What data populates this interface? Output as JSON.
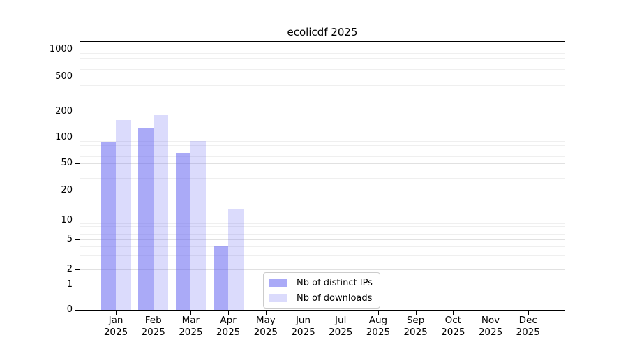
{
  "chart_data": {
    "type": "bar",
    "title": "ecolicdf 2025",
    "categories": [
      "Jan 2025",
      "Feb 2025",
      "Mar 2025",
      "Apr 2025",
      "May 2025",
      "Jun 2025",
      "Jul 2025",
      "Aug 2025",
      "Sep 2025",
      "Oct 2025",
      "Nov 2025",
      "Dec 2025"
    ],
    "x_months": [
      "Jan",
      "Feb",
      "Mar",
      "Apr",
      "May",
      "Jun",
      "Jul",
      "Aug",
      "Sep",
      "Oct",
      "Nov",
      "Dec"
    ],
    "x_year": "2025",
    "series": [
      {
        "name": "Nb of distinct IPs",
        "fill": "rgba(100,100,240,0.55)",
        "values": [
          87,
          130,
          66,
          4,
          null,
          null,
          null,
          null,
          null,
          null,
          null,
          null
        ]
      },
      {
        "name": "Nb of downloads",
        "fill": "rgba(100,100,240,0.23)",
        "values": [
          157,
          180,
          90,
          13,
          null,
          null,
          null,
          null,
          null,
          null,
          null,
          null
        ]
      }
    ],
    "yscale": "symlog",
    "yticks": [
      1000,
      500,
      200,
      100,
      50,
      20,
      10,
      5,
      2,
      1,
      0
    ],
    "ylim": [
      0,
      1100
    ],
    "xlabel": "",
    "ylabel": "",
    "grid": true,
    "legend_position": "inside lower center"
  }
}
